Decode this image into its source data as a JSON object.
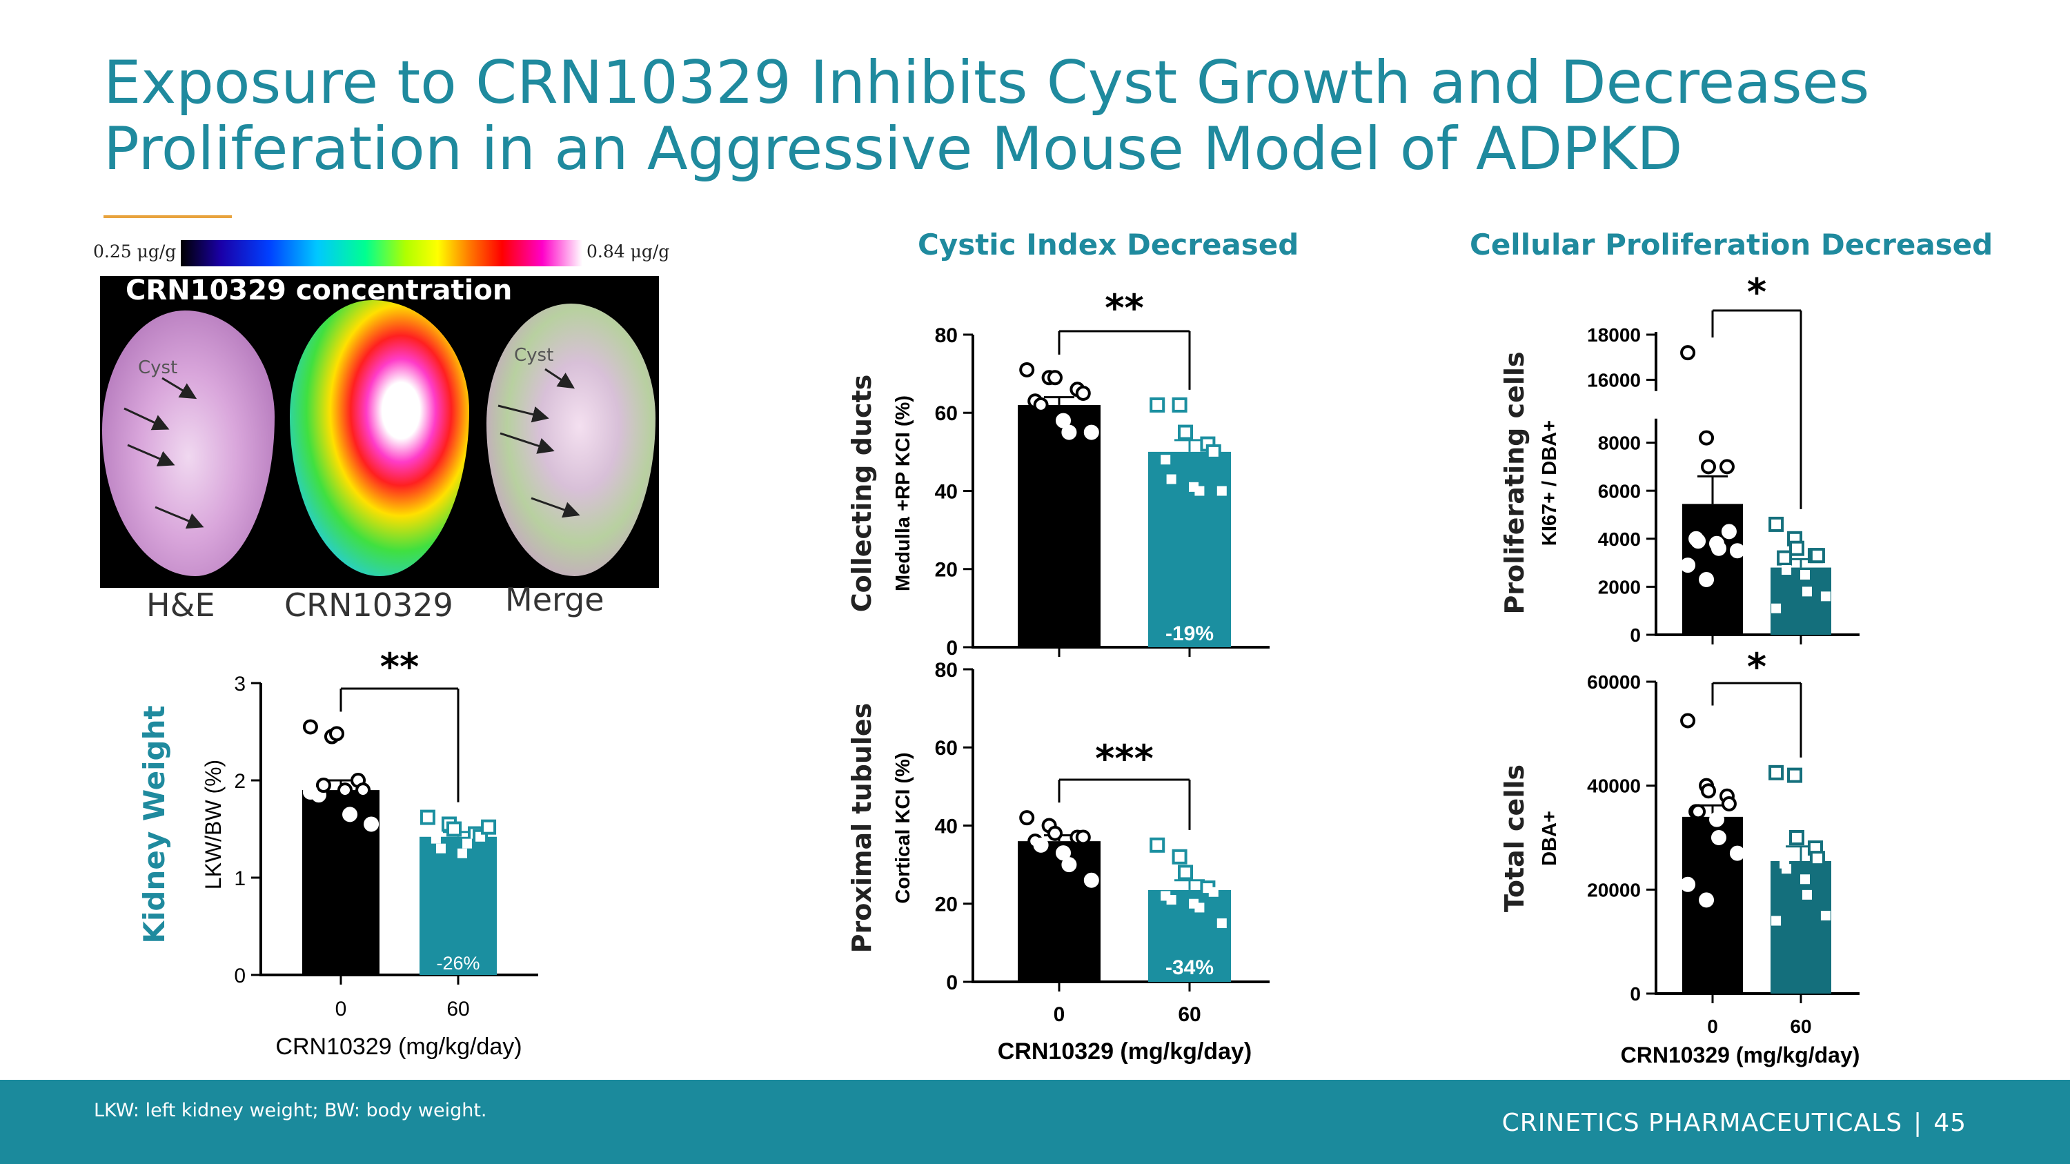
{
  "slide": {
    "title_line1": "Exposure to CRN10329 Inhibits Cyst Growth and Decreases",
    "title_line2": "Proliferation in an Aggressive Mouse Model of ADPKD",
    "cystic_header": "Cystic Index Decreased",
    "prolif_header": "Cellular Proliferation Decreased",
    "footnote": "LKW: left kidney weight; BW: body weight.",
    "company": "CRINETICS PHARMACEUTICALS",
    "separator": "|",
    "page_number": "45"
  },
  "image_panel": {
    "colorbar_min": "0.25 μg/g",
    "colorbar_max": "0.84 μg/g",
    "overlay_title": "CRN10329 concentration",
    "cyst_label": "Cyst",
    "panels": [
      "H&E",
      "CRN10329",
      "Merge"
    ]
  },
  "colors": {
    "control": "#000000",
    "treated": "#1b8fa0",
    "treated_dark": "#146f7c",
    "accent": "#1f8a9e",
    "rule": "#e8a33d"
  },
  "chart_data": [
    {
      "type": "bar",
      "id": "kidney_weight",
      "title": "Kidney Weight",
      "ylabel": "LKW/BW (%)",
      "xlabel": "CRN10329 (mg/kg/day)",
      "categories": [
        "0",
        "60"
      ],
      "values": [
        1.9,
        1.42
      ],
      "sem": [
        0.1,
        0.05
      ],
      "ylim": [
        0,
        3
      ],
      "yticks": [
        0,
        1,
        2,
        3
      ],
      "significance": "**",
      "change_label": "-26%",
      "points": [
        [
          2.55,
          2.45,
          2.48,
          2.0,
          1.9,
          1.85,
          1.95,
          1.9,
          1.65,
          1.55,
          1.88
        ],
        [
          1.62,
          1.55,
          1.5,
          1.45,
          1.42,
          1.4,
          1.3,
          1.25,
          1.35,
          1.52
        ]
      ]
    },
    {
      "type": "bar",
      "id": "collecting_ducts",
      "ylabel": "Collecting ducts",
      "ylabel2": "Medulla +RP KCI (%)",
      "categories": [
        "0",
        "60"
      ],
      "values": [
        62,
        50
      ],
      "sem": [
        2,
        3
      ],
      "ylim": [
        0,
        80
      ],
      "yticks": [
        0,
        20,
        40,
        60,
        80
      ],
      "significance": "**",
      "change_label": "-19%",
      "points": [
        [
          71,
          69,
          69,
          66,
          65,
          63,
          62,
          58,
          55,
          55
        ],
        [
          62,
          62,
          55,
          52,
          50,
          48,
          43,
          41,
          40,
          40
        ]
      ]
    },
    {
      "type": "bar",
      "id": "proximal_tubules",
      "ylabel": "Proximal tubules",
      "ylabel2": "Cortical KCI (%)",
      "xlabel": "CRN10329 (mg/kg/day)",
      "categories": [
        "0",
        "60"
      ],
      "values": [
        36,
        23.5
      ],
      "sem": [
        1.5,
        2.5
      ],
      "ylim": [
        0,
        80
      ],
      "yticks": [
        0,
        20,
        40,
        60,
        80
      ],
      "significance": "***",
      "change_label": "-34%",
      "points": [
        [
          42,
          40,
          38,
          37,
          37,
          36,
          35,
          33,
          30,
          26
        ],
        [
          35,
          32,
          28,
          24,
          23,
          22,
          21,
          20,
          19,
          15
        ]
      ]
    },
    {
      "type": "bar",
      "id": "proliferating_cells",
      "ylabel": "Proliferating cells",
      "ylabel2": "KI67+ / DBA+",
      "categories": [
        "0",
        "60"
      ],
      "values": [
        5450,
        2800
      ],
      "sem": [
        1150,
        350
      ],
      "ylim": [
        0,
        18000
      ],
      "axis_break": [
        9000,
        15500
      ],
      "yticks": [
        0,
        2000,
        4000,
        6000,
        8000,
        16000,
        18000
      ],
      "significance": "*",
      "points": [
        [
          17200,
          8200,
          7000,
          7000,
          4300,
          4000,
          3900,
          3800,
          3600,
          3500,
          2900,
          2300
        ],
        [
          4600,
          4000,
          3600,
          3300,
          3300,
          3200,
          2700,
          2500,
          1800,
          1600,
          1100
        ]
      ]
    },
    {
      "type": "bar",
      "id": "total_cells",
      "ylabel": "Total cells",
      "ylabel2": "DBA+",
      "xlabel": "CRN10329 (mg/kg/day)",
      "categories": [
        "0",
        "60"
      ],
      "values": [
        34000,
        25500
      ],
      "sem": [
        2200,
        2800
      ],
      "ylim": [
        0,
        60000
      ],
      "yticks": [
        0,
        20000,
        40000,
        60000
      ],
      "significance": "*",
      "points": [
        [
          52500,
          40000,
          39000,
          38000,
          36500,
          35000,
          35000,
          33500,
          30000,
          27000,
          21000,
          18000
        ],
        [
          42500,
          42000,
          30000,
          28000,
          26000,
          25000,
          24000,
          22000,
          19000,
          15000,
          14000
        ]
      ]
    }
  ]
}
